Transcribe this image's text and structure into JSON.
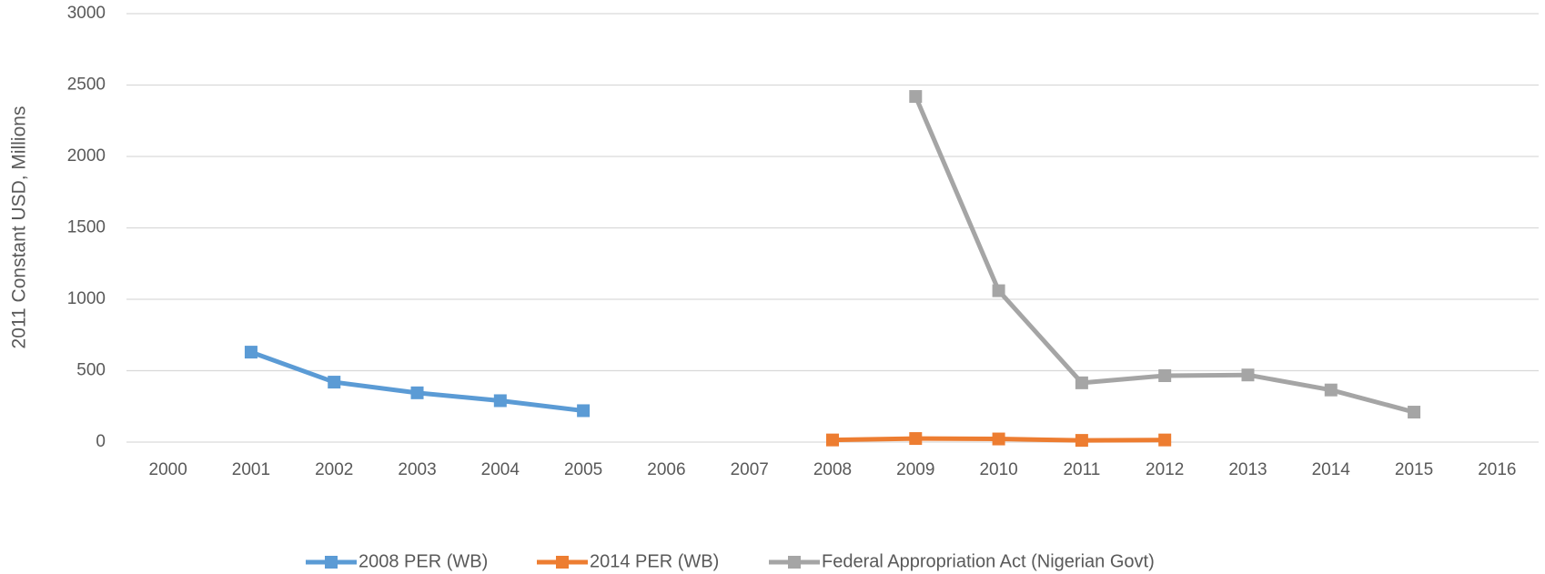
{
  "chart_data": {
    "type": "line",
    "y_label": "2011 Constant USD, Millions",
    "categories": [
      "2000",
      "2001",
      "2002",
      "2003",
      "2004",
      "2005",
      "2006",
      "2007",
      "2008",
      "2009",
      "2010",
      "2011",
      "2012",
      "2013",
      "2014",
      "2015",
      "2016"
    ],
    "series": [
      {
        "name": "2008 PER (WB)",
        "color": "#5b9bd5",
        "values": [
          null,
          630,
          420,
          345,
          290,
          220,
          null,
          null,
          null,
          null,
          null,
          null,
          null,
          null,
          null,
          null,
          null
        ]
      },
      {
        "name": "2014 PER (WB)",
        "color": "#ed7d31",
        "values": [
          null,
          null,
          null,
          null,
          null,
          null,
          null,
          null,
          15,
          25,
          22,
          12,
          15,
          null,
          null,
          null,
          null
        ]
      },
      {
        "name": "Federal Appropriation Act (Nigerian Govt)",
        "color": "#a5a5a5",
        "values": [
          null,
          null,
          null,
          null,
          null,
          null,
          null,
          null,
          null,
          2420,
          1060,
          415,
          465,
          470,
          365,
          210,
          null
        ]
      }
    ],
    "ylim": [
      0,
      3000
    ],
    "yticks": [
      0,
      500,
      1000,
      1500,
      2000,
      2500,
      3000
    ],
    "grid": true,
    "legend": "bottom"
  }
}
